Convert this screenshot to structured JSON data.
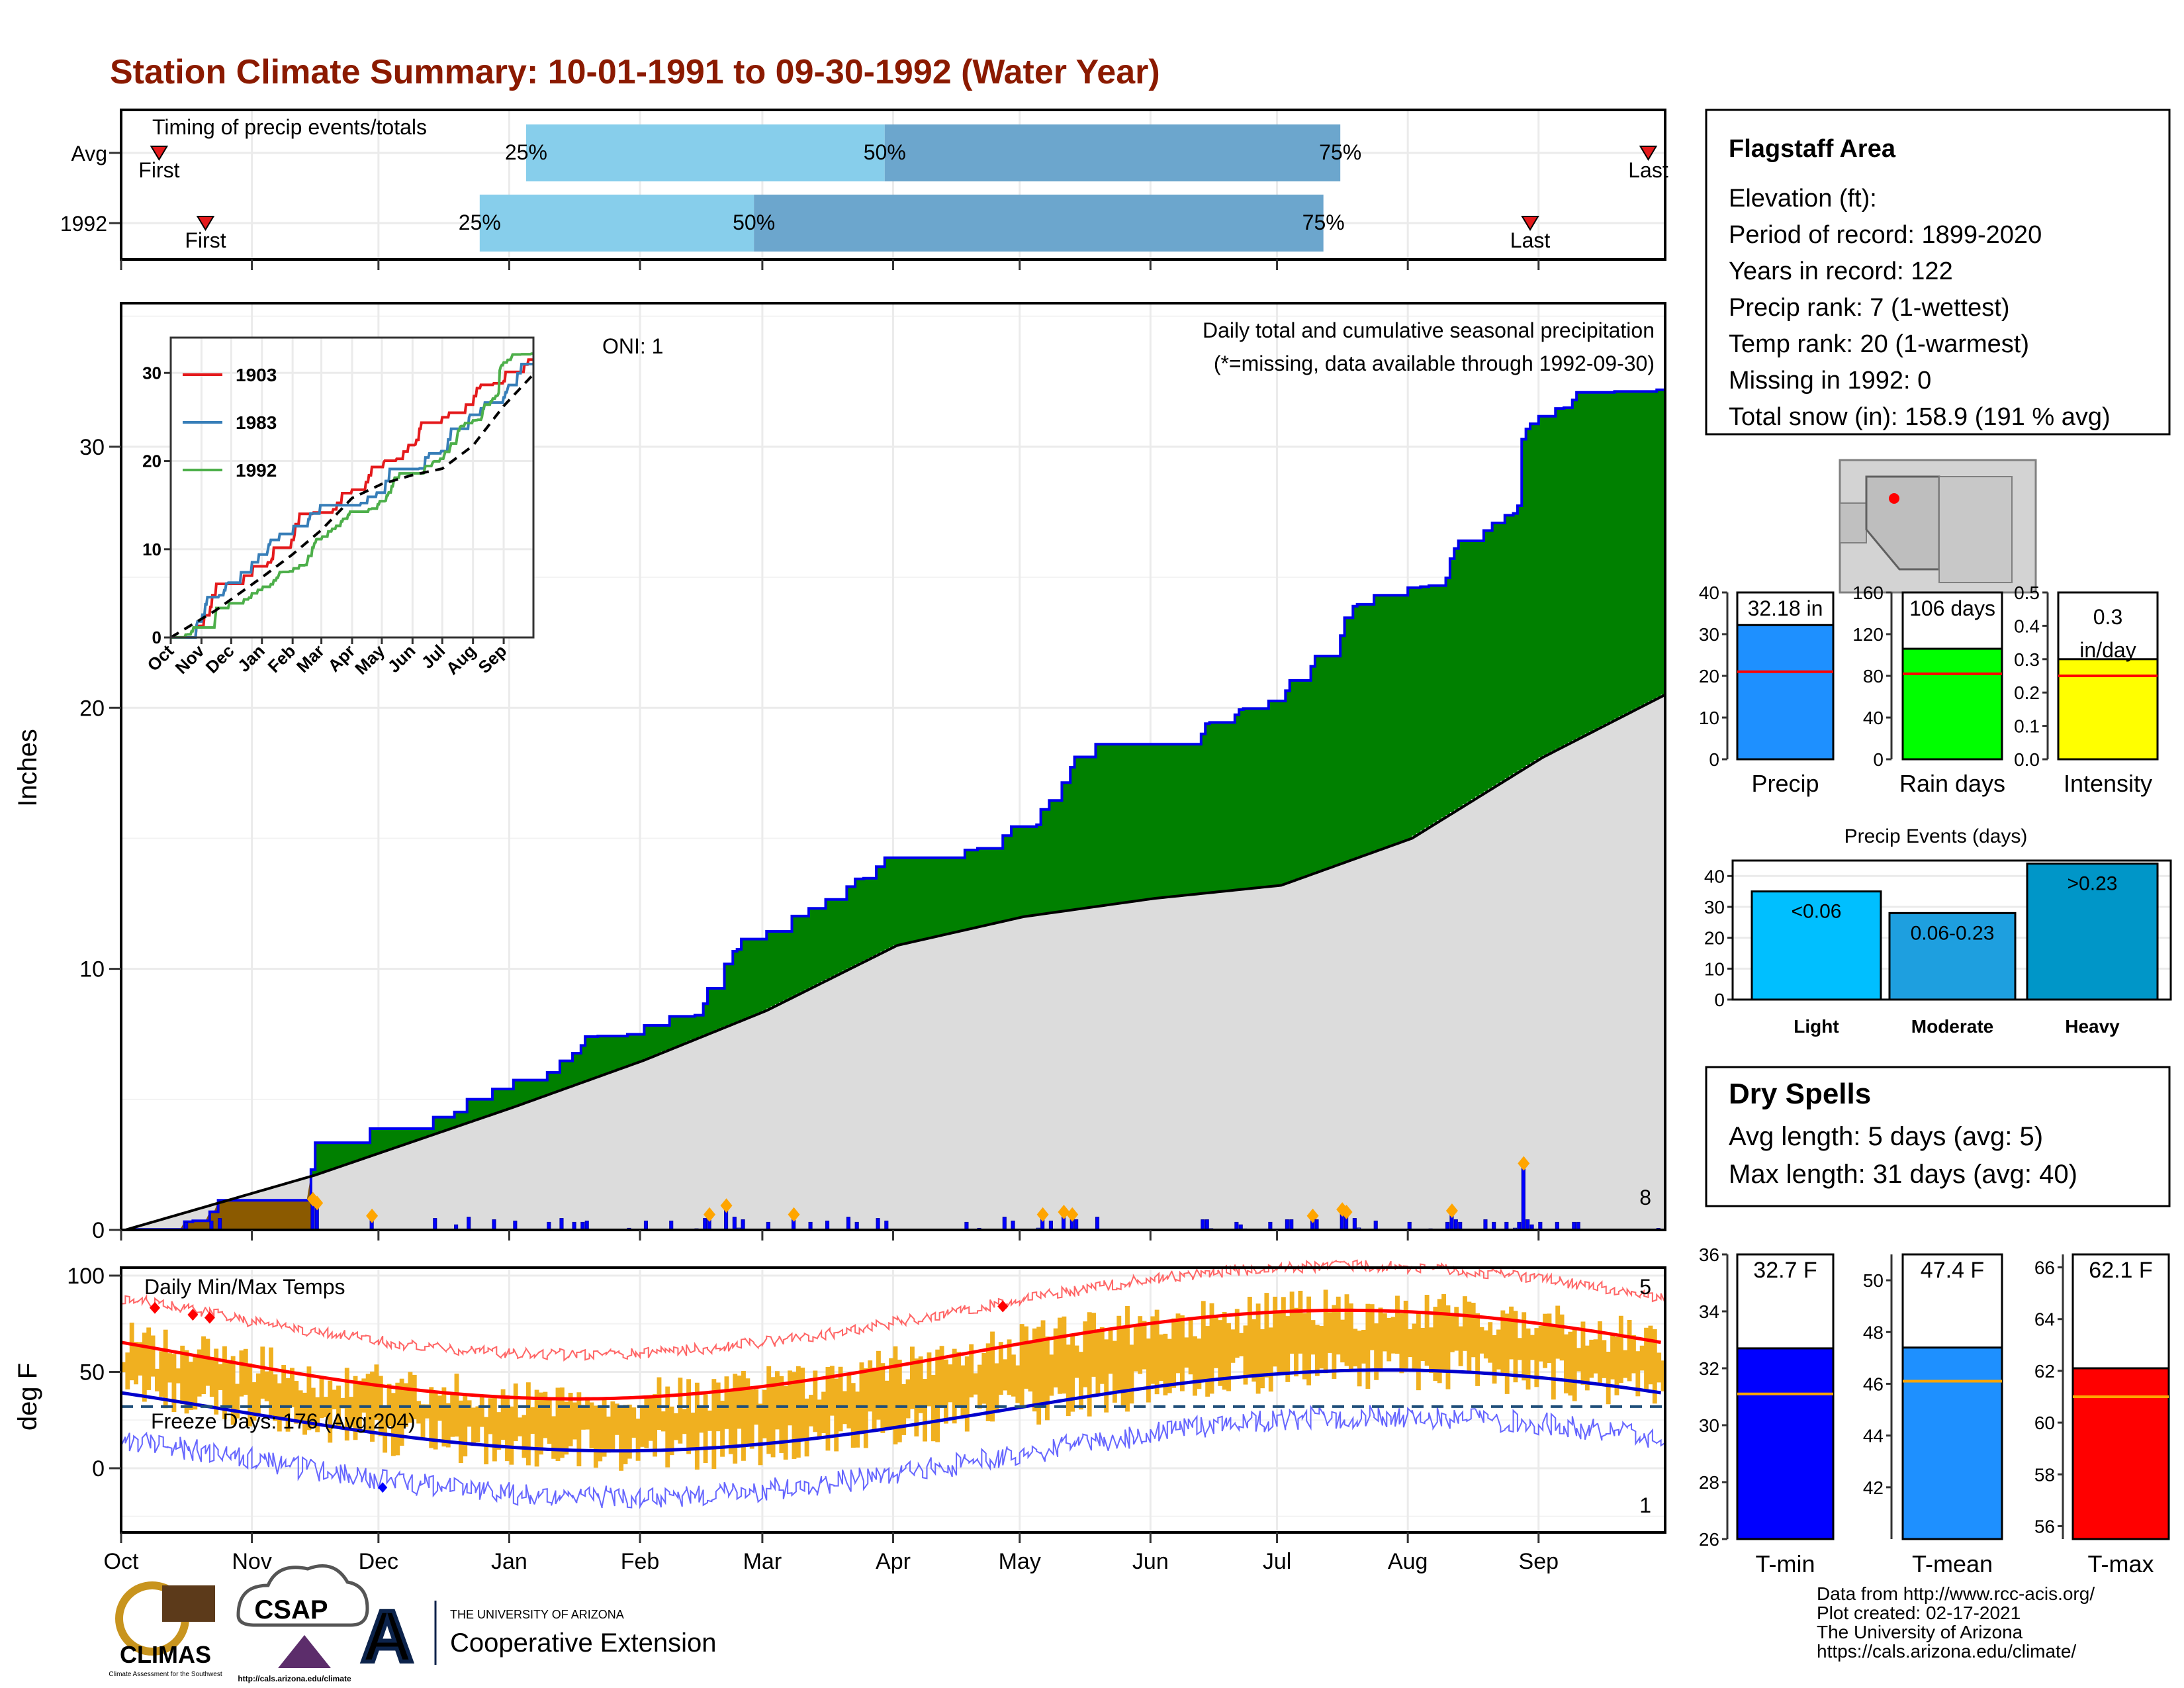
{
  "title": "Station Climate Summary: 10-01-1991 to 09-30-1992 (Water Year)",
  "timing": {
    "title": "Timing of precip events/totals",
    "rows": [
      {
        "label": "Avg",
        "first_label": "First",
        "last_label": "Last",
        "first": "Oct 10",
        "q25": "Jan 5",
        "q50": "Mar 30",
        "q75": "Jul 16",
        "last": "Sep 27",
        "q25_label": "25%",
        "q50_label": "50%",
        "q75_label": "75%"
      },
      {
        "label": "1992",
        "first_label": "First",
        "last_label": "Last",
        "first": "Oct 21",
        "q25": "Dec 25",
        "q50": "Feb 28",
        "q75": "Jul 12",
        "last": "Aug 30",
        "q25_label": "25%",
        "q50_label": "50%",
        "q75_label": "75%"
      }
    ]
  },
  "info_box": {
    "station": "Flagstaff Area",
    "lines": [
      "Elevation (ft):",
      "Period of record: 1899-2020",
      "Years in record: 122",
      "Precip rank: 7 (1-wettest)",
      "Temp rank: 20 (1-warmest)",
      "Missing in 1992: 0",
      "Total snow (in): 158.9 (191 % avg)"
    ]
  },
  "precip_panel": {
    "y_axis_label": "Inches",
    "oni_label": "ONI: 1",
    "subtitle": "Daily total and cumulative seasonal precipitation",
    "missing_note": "(*=missing, data available through 1992-09-30)",
    "corner_count": "8",
    "x_ticks": [
      "Oct",
      "Nov",
      "Dec",
      "Jan",
      "Feb",
      "Mar",
      "Apr",
      "May",
      "Jun",
      "Jul",
      "Aug",
      "Sep"
    ],
    "y_ticks": [
      "0",
      "10",
      "20",
      "30"
    ]
  },
  "inset": {
    "legend": [
      {
        "name": "1903",
        "color": "#e41a1c"
      },
      {
        "name": "1983",
        "color": "#377eb8"
      },
      {
        "name": "1992",
        "color": "#4daf4a"
      }
    ],
    "x_ticks": [
      "Oct",
      "Nov",
      "Dec",
      "Jan",
      "Feb",
      "Mar",
      "Apr",
      "May",
      "Jun",
      "Jul",
      "Aug",
      "Sep"
    ],
    "y_ticks": [
      "0",
      "10",
      "20",
      "30"
    ]
  },
  "temp_panel": {
    "title": "Daily Min/Max Temps",
    "y_axis_label": "deg F",
    "freeze_label": "Freeze Days: 176 (Avg:204)",
    "count_top": "5",
    "count_bottom": "1",
    "x_ticks": [
      "Oct",
      "Nov",
      "Dec",
      "Jan",
      "Feb",
      "Mar",
      "Apr",
      "May",
      "Jun",
      "Jul",
      "Aug",
      "Sep"
    ],
    "y_ticks": [
      "0",
      "50",
      "100"
    ]
  },
  "summary_bars": [
    {
      "name": "Precip",
      "value_label": "32.18 in",
      "value": 32.18,
      "avg": 21,
      "ymax": 40,
      "ticks": [
        "0",
        "10",
        "20",
        "30",
        "40"
      ],
      "color": "#1E90FF"
    },
    {
      "name": "Rain days",
      "value_label": "106 days",
      "value": 106,
      "avg": 82,
      "ymax": 160,
      "ticks": [
        "0",
        "40",
        "80",
        "120",
        "160"
      ],
      "color": "#00FF00"
    },
    {
      "name": "Intensity",
      "value_label": "0.3 in/day",
      "value": 0.3,
      "avg": 0.25,
      "ymax": 0.5,
      "ticks": [
        "0.0",
        "0.1",
        "0.2",
        "0.3",
        "0.4",
        "0.5"
      ],
      "color": "#FFFF00"
    }
  ],
  "precip_events": {
    "title": "Precip Events (days)",
    "ticks": [
      "0",
      "10",
      "20",
      "30",
      "40"
    ],
    "bars": [
      {
        "name": "Light",
        "label": "<0.06",
        "value": 35,
        "color": "#00BFFF"
      },
      {
        "name": "Moderate",
        "label": "0.06-0.23",
        "value": 28,
        "color": "#1E9FDF"
      },
      {
        "name": "Heavy",
        "label": ">0.23",
        "value": 44,
        "color": "#0096C8"
      }
    ]
  },
  "dry_spells": {
    "title": "Dry Spells",
    "avg_length": "Avg length: 5 days (avg: 5)",
    "max_length": "Max length: 31 days (avg: 40)"
  },
  "temp_bars": [
    {
      "name": "T-min",
      "value_label": "32.7 F",
      "value": 32.7,
      "avg": 31.1,
      "ymin": 26,
      "ymax": 36,
      "ticks": [
        "26",
        "28",
        "30",
        "32",
        "34",
        "36"
      ],
      "color": "#0000FF"
    },
    {
      "name": "T-mean",
      "value_label": "47.4 F",
      "value": 47.4,
      "avg": 46.1,
      "ymin": 40,
      "ymax": 51,
      "ticks": [
        "42",
        "44",
        "46",
        "48",
        "50"
      ],
      "color": "#1E90FF"
    },
    {
      "name": "T-max",
      "value_label": "62.1 F",
      "value": 62.1,
      "avg": 61,
      "ymin": 55.5,
      "ymax": 66.5,
      "ticks": [
        "56",
        "58",
        "60",
        "62",
        "64",
        "66"
      ],
      "color": "#FF0000"
    }
  ],
  "colors": {
    "title": "#8B1A00",
    "cum_fill": "#008000",
    "avg_fill": "#DCDCDC",
    "snow_fill": "#8B5A00",
    "tmax_avg": "#FF0000",
    "tmin_avg": "#0000CC",
    "temp_bar": "#F0B020"
  },
  "footer": {
    "logos": [
      {
        "name": "CLIMAS",
        "caption": "Climate Assessment for the Southwest"
      },
      {
        "name": "CSAP",
        "caption": "http://cals.arizona.edu/climate"
      },
      {
        "name": "THE UNIVERSITY OF ARIZONA",
        "caption": "Cooperative Extension"
      }
    ],
    "credits": [
      "Data from http://www.rcc-acis.org/",
      "Plot created: 02-17-2021",
      "The University of Arizona",
      "https://cals.arizona.edu/climate/"
    ]
  }
}
